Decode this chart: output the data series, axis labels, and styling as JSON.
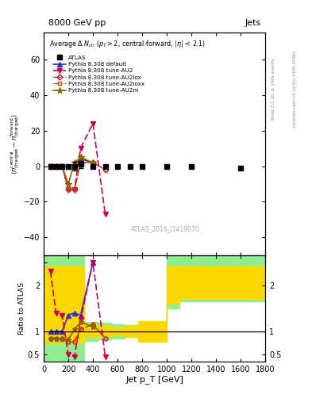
{
  "title_top": "8000 GeV pp",
  "title_right": "Jets",
  "ylabel_main": "⟨ nᵉᵃⁿᵗʳᵃˡ_charged - nᶠᵒʳʷᵃʳᵈ_charged ⟩",
  "ylabel_ratio": "Ratio to ATLAS",
  "xlabel": "Jet p_T [GeV]",
  "right_label_top": "Rivet 3.1.10, ≥ 100k events",
  "right_label_bottom": "mcplots.cern.ch [arXiv:1306.3436]",
  "watermark": "ATLAS_2016_I1419070",
  "xlim": [
    0,
    1800
  ],
  "ylim_main": [
    -50,
    75
  ],
  "ylim_ratio": [
    0.35,
    2.65
  ],
  "atlas_x": [
    55,
    100,
    150,
    200,
    250,
    300,
    400,
    500,
    600,
    700,
    800,
    1000,
    1200,
    1600
  ],
  "atlas_y": [
    0,
    0,
    0,
    0,
    0,
    1,
    0,
    0,
    0,
    0,
    0,
    0,
    0,
    -1
  ],
  "atlas_yerr": [
    0.5,
    0.5,
    0.5,
    0.5,
    2.5,
    2.0,
    0.5,
    0.5,
    0.5,
    0.5,
    0.5,
    0.5,
    0.5,
    0.5
  ],
  "pythia_default_x": [
    55,
    100,
    150,
    200,
    250,
    300,
    400
  ],
  "pythia_default_y": [
    0,
    0,
    0,
    0,
    1,
    4,
    2
  ],
  "pythia_au2_x": [
    55,
    100,
    150,
    200,
    250,
    300,
    400,
    500
  ],
  "pythia_au2_y": [
    0,
    0,
    0,
    -13,
    -13,
    10,
    24,
    -27
  ],
  "pythia_au2lox_x": [
    55,
    100,
    150,
    200,
    250,
    300,
    400,
    500
  ],
  "pythia_au2lox_y": [
    0,
    0,
    0,
    -13,
    -13,
    2,
    2,
    -2
  ],
  "pythia_au2loxx_x": [
    55,
    100,
    150,
    200,
    250,
    300,
    400,
    500
  ],
  "pythia_au2loxx_y": [
    0,
    0,
    0,
    -13,
    -13,
    2,
    2,
    -2
  ],
  "pythia_au2m_x": [
    55,
    100,
    150,
    200,
    250,
    300,
    400
  ],
  "pythia_au2m_y": [
    0,
    0,
    0,
    -10,
    2,
    5,
    2
  ],
  "color_default": "#3333cc",
  "color_au2": "#cc0055",
  "color_au2lox": "#cc1133",
  "color_au2loxx": "#cc4411",
  "color_au2m": "#886600",
  "ratio_default_x": [
    55,
    100,
    150,
    200,
    250,
    300,
    400
  ],
  "ratio_default_y": [
    1.0,
    1.0,
    1.0,
    1.35,
    1.4,
    1.35,
    2.5
  ],
  "ratio_au2_x": [
    55,
    100,
    150,
    200,
    250,
    300,
    400,
    500
  ],
  "ratio_au2_y": [
    2.3,
    1.4,
    1.35,
    0.5,
    0.45,
    1.25,
    2.5,
    0.45
  ],
  "ratio_au2lox_x": [
    55,
    100,
    150,
    200,
    250,
    300,
    400,
    500
  ],
  "ratio_au2lox_y": [
    0.85,
    0.85,
    0.85,
    0.78,
    0.78,
    1.05,
    1.15,
    0.85
  ],
  "ratio_au2loxx_x": [
    55,
    100,
    150,
    200,
    250,
    300,
    400,
    500
  ],
  "ratio_au2loxx_y": [
    0.85,
    0.82,
    0.82,
    0.78,
    0.78,
    1.05,
    1.15,
    0.85
  ],
  "ratio_au2m_x": [
    55,
    100,
    150,
    200,
    250,
    300,
    400
  ],
  "ratio_au2m_y": [
    0.85,
    0.85,
    0.85,
    0.82,
    1.05,
    1.2,
    1.1
  ]
}
